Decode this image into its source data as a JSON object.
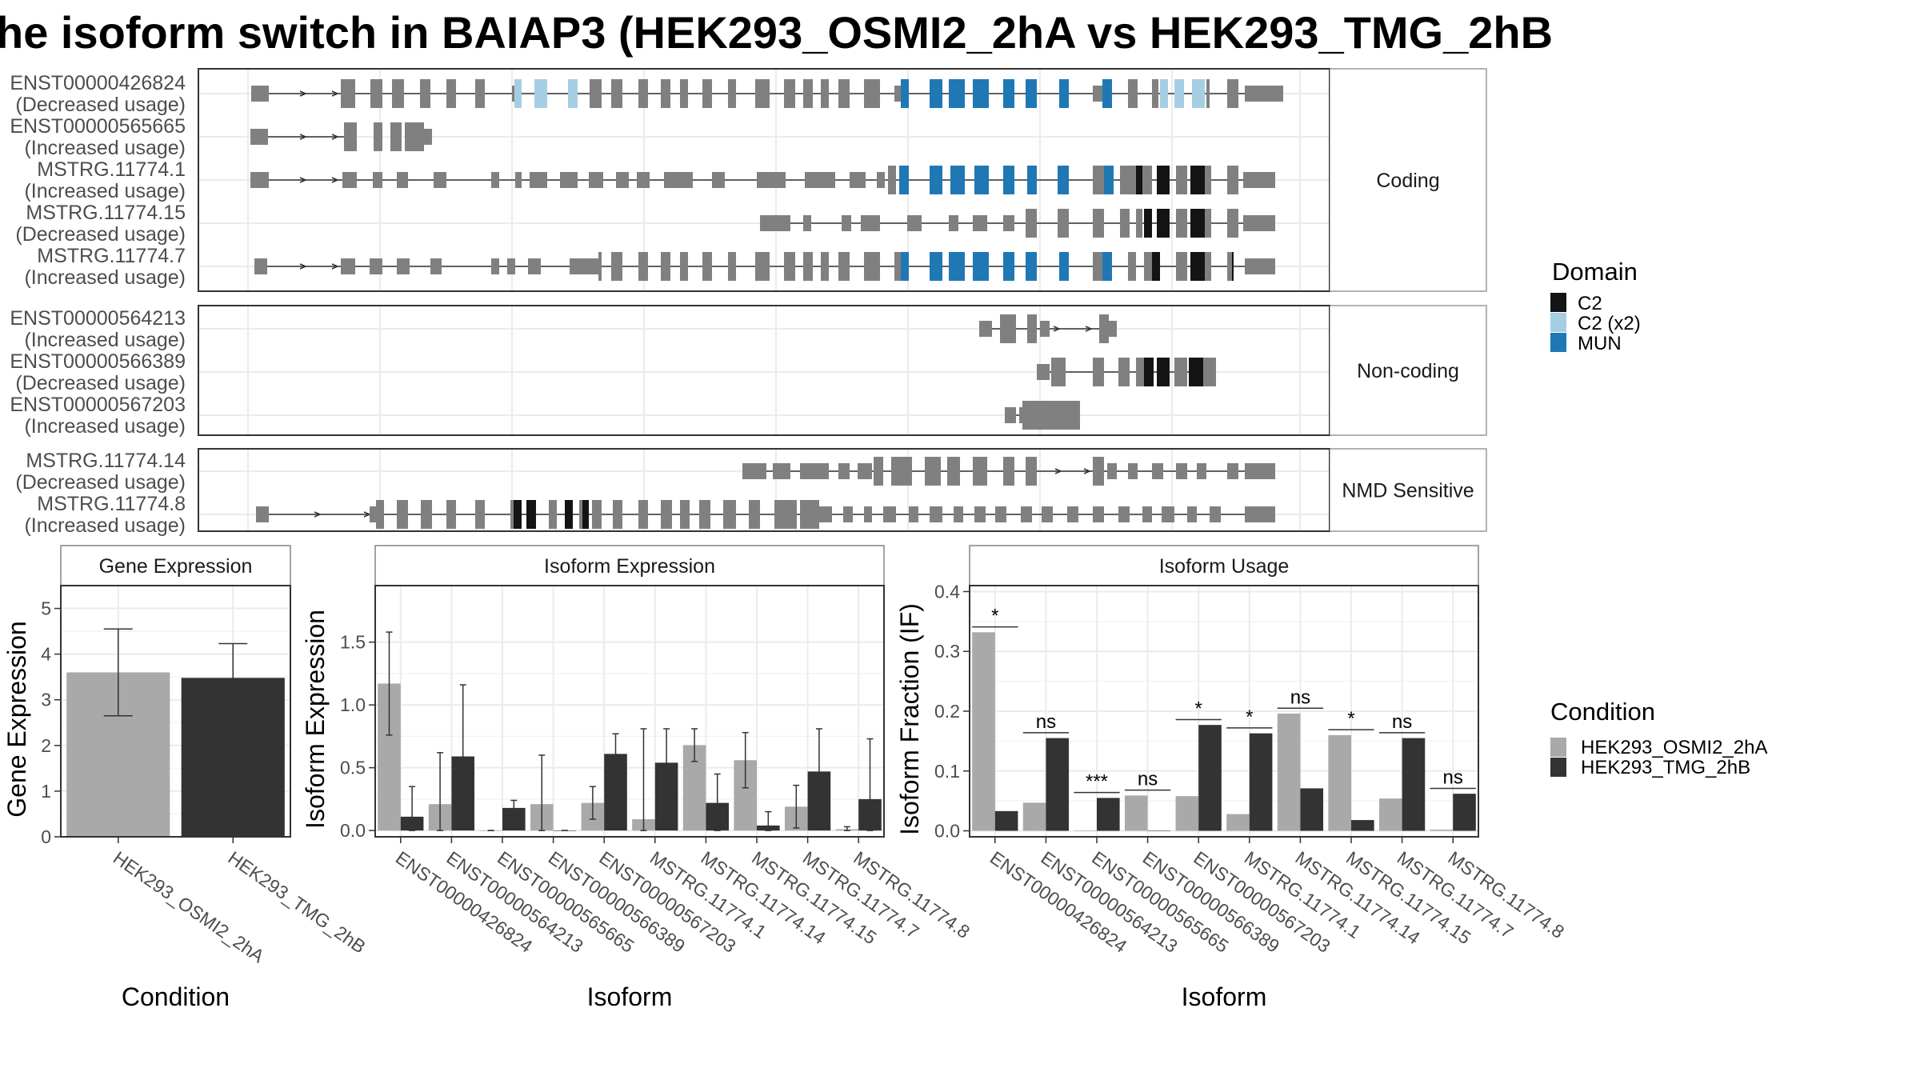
{
  "title": "he isoform switch in BAIAP3 (HEK293_OSMI2_2hA vs HEK293_TMG_2hB",
  "colors": {
    "cond1": "#a9a9a9",
    "cond2": "#333333",
    "exon": "#808080",
    "C2": "#141414",
    "C2x2": "#a6cee3",
    "MUN": "#1f78b4",
    "grid": "#ebebeb",
    "strip": "#ffffff"
  },
  "structure": {
    "panels": [
      {
        "label": "Coding",
        "transcripts": [
          {
            "id": "ENST00000426824",
            "usage": "(Decreased usage)"
          },
          {
            "id": "ENST00000565665",
            "usage": "(Increased usage)"
          },
          {
            "id": "MSTRG.11774.1",
            "usage": "(Increased usage)"
          },
          {
            "id": "MSTRG.11774.15",
            "usage": "(Decreased usage)"
          },
          {
            "id": "MSTRG.11774.7",
            "usage": "(Increased usage)"
          }
        ]
      },
      {
        "label": "Non-coding",
        "transcripts": [
          {
            "id": "ENST00000564213",
            "usage": "(Increased usage)"
          },
          {
            "id": "ENST00000566389",
            "usage": "(Decreased usage)"
          },
          {
            "id": "ENST00000567203",
            "usage": "(Increased usage)"
          }
        ]
      },
      {
        "label": "NMD Sensitive",
        "transcripts": [
          {
            "id": "MSTRG.11774.14",
            "usage": "(Decreased usage)"
          },
          {
            "id": "MSTRG.11774.8",
            "usage": "(Increased usage)"
          }
        ]
      }
    ]
  },
  "legend_domain": {
    "title": "Domain",
    "items": [
      "C2",
      "C2 (x2)",
      "MUN"
    ]
  },
  "legend_condition": {
    "title": "Condition",
    "items": [
      "HEK293_OSMI2_2hA",
      "HEK293_TMG_2hB"
    ]
  },
  "chart_data": [
    {
      "type": "bar",
      "title": "Gene Expression",
      "xlabel": "Condition",
      "ylabel": "Gene Expression",
      "categories": [
        "HEK293_OSMI2_2hA",
        "HEK293_TMG_2hB"
      ],
      "values": [
        3.6,
        3.48
      ],
      "error_low": [
        2.65,
        2.72
      ],
      "error_high": [
        4.55,
        4.23
      ],
      "ylim": [
        0,
        5.5
      ],
      "yticks": [
        0,
        1,
        2,
        3,
        4,
        5
      ]
    },
    {
      "type": "bar",
      "title": "Isoform Expression",
      "xlabel": "Isoform",
      "ylabel": "Isoform Expression",
      "categories": [
        "ENST00000426824",
        "ENST00000564213",
        "ENST00000565665",
        "ENST00000566389",
        "ENST00000567203",
        "MSTRG.11774.1",
        "MSTRG.11774.14",
        "MSTRG.11774.15",
        "MSTRG.11774.7",
        "MSTRG.11774.8"
      ],
      "series": [
        {
          "name": "HEK293_OSMI2_2hA",
          "values": [
            1.17,
            0.21,
            0.0,
            0.21,
            0.22,
            0.09,
            0.68,
            0.56,
            0.19,
            0.01
          ],
          "error_low": [
            0.76,
            0.0,
            0.0,
            0.0,
            0.09,
            0.0,
            0.55,
            0.34,
            0.02,
            0.0
          ],
          "error_high": [
            1.58,
            0.62,
            0.0,
            0.6,
            0.35,
            0.81,
            0.81,
            0.78,
            0.36,
            0.03
          ]
        },
        {
          "name": "HEK293_TMG_2hB",
          "values": [
            0.11,
            0.59,
            0.18,
            0.0,
            0.61,
            0.54,
            0.22,
            0.04,
            0.47,
            0.25
          ],
          "error_low": [
            0.0,
            0.01,
            0.12,
            0.0,
            0.44,
            0.27,
            0.0,
            0.0,
            0.13,
            0.0
          ],
          "error_high": [
            0.35,
            1.16,
            0.24,
            0.0,
            0.77,
            0.81,
            0.45,
            0.15,
            0.81,
            0.73
          ]
        }
      ],
      "ylim": [
        -0.05,
        1.95
      ],
      "yticks": [
        0.0,
        0.5,
        1.0,
        1.5
      ]
    },
    {
      "type": "bar",
      "title": "Isoform Usage",
      "xlabel": "Isoform",
      "ylabel": "Isoform Fraction (IF)",
      "categories": [
        "ENST00000426824",
        "ENST00000564213",
        "ENST00000565665",
        "ENST00000566389",
        "ENST00000567203",
        "MSTRG.11774.1",
        "MSTRG.11774.14",
        "MSTRG.11774.15",
        "MSTRG.11774.7",
        "MSTRG.11774.8"
      ],
      "series": [
        {
          "name": "HEK293_OSMI2_2hA",
          "values": [
            0.332,
            0.047,
            0.0,
            0.059,
            0.058,
            0.028,
            0.196,
            0.16,
            0.054,
            0.002
          ]
        },
        {
          "name": "HEK293_TMG_2hB",
          "values": [
            0.033,
            0.155,
            0.055,
            0.0,
            0.177,
            0.163,
            0.071,
            0.018,
            0.155,
            0.062
          ]
        }
      ],
      "significance": [
        "*",
        "ns",
        "***",
        "ns",
        "*",
        "*",
        "ns",
        "*",
        "ns",
        "ns"
      ],
      "ylim": [
        -0.01,
        0.41
      ],
      "yticks": [
        0.0,
        0.1,
        0.2,
        0.3,
        0.4
      ]
    }
  ]
}
